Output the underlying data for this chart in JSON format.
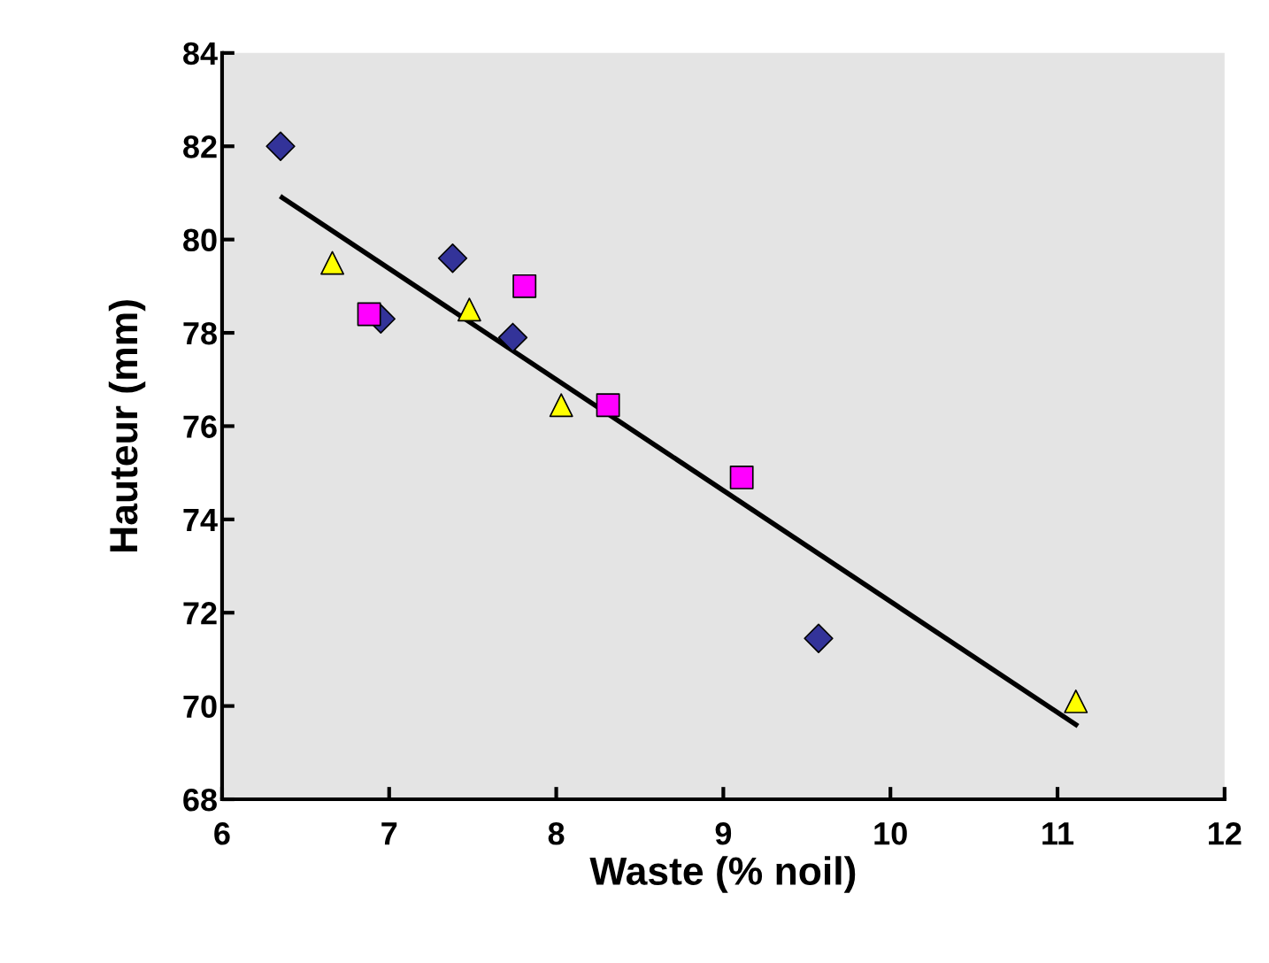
{
  "chart_data": {
    "type": "scatter",
    "xlabel": "Waste (% noil)",
    "ylabel": "Hauteur (mm)",
    "xlim": [
      6,
      12
    ],
    "xticks": [
      6,
      7,
      8,
      9,
      10,
      11,
      12
    ],
    "ylim": [
      68,
      84
    ],
    "yticks": [
      68,
      70,
      72,
      74,
      76,
      78,
      80,
      82,
      84
    ],
    "grid": false,
    "series": [
      {
        "marker": "diamond",
        "color": "#333399",
        "x": [
          6.35,
          6.95,
          7.38,
          7.74,
          9.57
        ],
        "values": [
          82.0,
          78.3,
          79.6,
          77.9,
          71.45
        ]
      },
      {
        "marker": "square",
        "color": "#ff00ff",
        "x": [
          6.88,
          7.81,
          8.31,
          9.11
        ],
        "values": [
          78.4,
          79.0,
          76.45,
          74.9
        ]
      },
      {
        "marker": "triangle",
        "color": "#ffff00",
        "x": [
          6.66,
          7.48,
          8.03,
          11.11
        ],
        "values": [
          79.5,
          78.5,
          76.45,
          70.1
        ]
      },
      {
        "type": "line",
        "color": "#000000",
        "line_style": "solid",
        "marker": "none",
        "x": [
          6.36,
          11.11
        ],
        "values": [
          80.9,
          69.6
        ]
      }
    ]
  }
}
